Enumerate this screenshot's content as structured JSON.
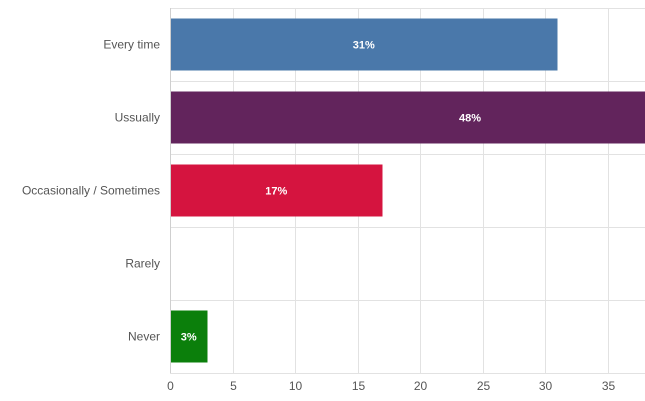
{
  "chart_data": {
    "type": "bar",
    "orientation": "horizontal",
    "categories": [
      "Every time",
      "Ussually",
      "Occasionally / Sometimes",
      "Rarely",
      "Never"
    ],
    "values": [
      31,
      48,
      17,
      0,
      3
    ],
    "data_labels": [
      "31%",
      "48%",
      "17%",
      "",
      "3%"
    ],
    "colors": [
      "#4a78aa",
      "#62245c",
      "#d5143f",
      "#cccccc",
      "#0b7f0b"
    ],
    "xlim": [
      0,
      38
    ],
    "xticks": [
      0,
      5,
      10,
      15,
      20,
      25,
      30,
      35
    ],
    "grid": true,
    "legend": "none",
    "title": "",
    "xlabel": "",
    "ylabel": ""
  }
}
